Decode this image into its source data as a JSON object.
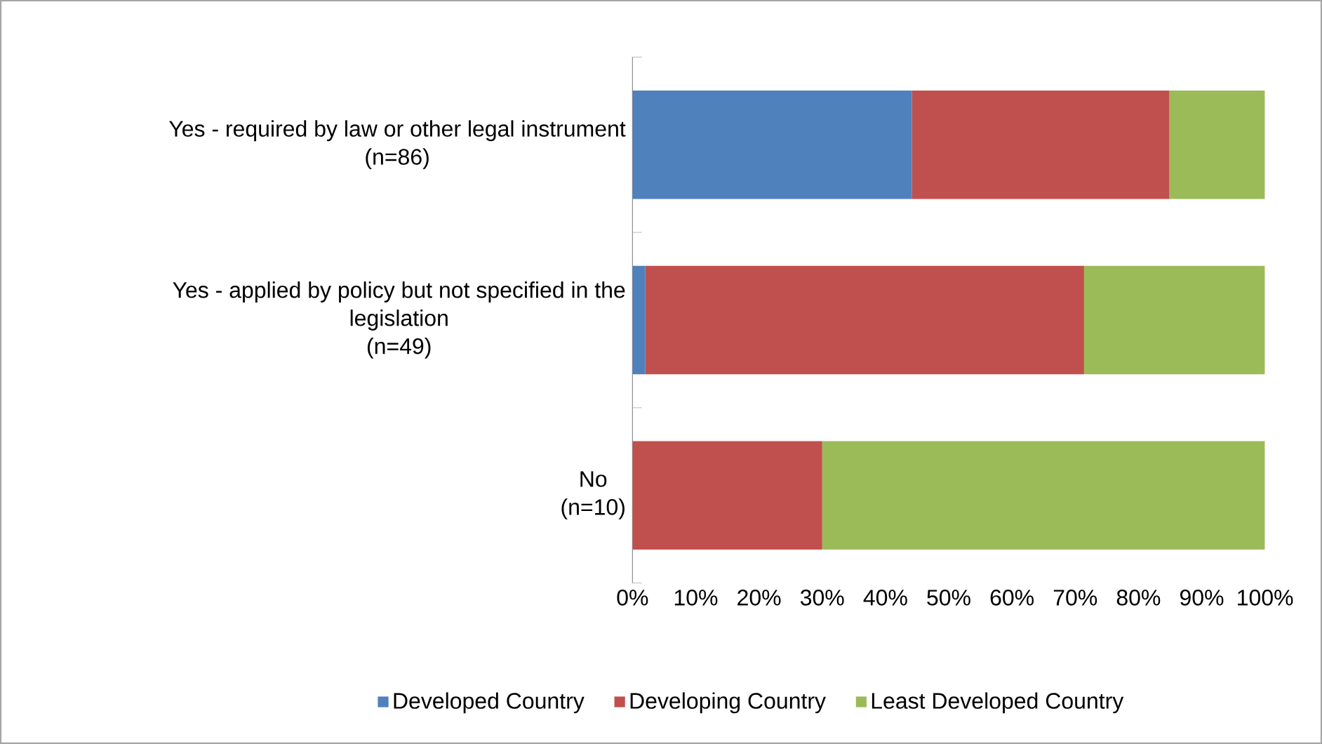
{
  "chart_data": {
    "type": "bar",
    "orientation": "horizontal",
    "stacked": true,
    "categories": [
      "Yes - required by law or other legal instrument\n(n=86)",
      "Yes - applied by policy but not specified in the\nlegislation\n(n=49)",
      "No\n(n=10)"
    ],
    "series": [
      {
        "name": "Developed Country",
        "color": "#4f81bd",
        "values": [
          44.2,
          2.0,
          0
        ]
      },
      {
        "name": "Developing Country",
        "color": "#c0504d",
        "values": [
          40.7,
          69.4,
          30
        ]
      },
      {
        "name": "Least Developed Country",
        "color": "#9bbb59",
        "values": [
          15.1,
          28.6,
          70
        ]
      }
    ],
    "xlim": [
      0,
      100
    ],
    "xticks": [
      {
        "value": 0,
        "label": "0%"
      },
      {
        "value": 10,
        "label": "10%"
      },
      {
        "value": 20,
        "label": "20%"
      },
      {
        "value": 30,
        "label": "30%"
      },
      {
        "value": 40,
        "label": "40%"
      },
      {
        "value": 50,
        "label": "50%"
      },
      {
        "value": 60,
        "label": "60%"
      },
      {
        "value": 70,
        "label": "70%"
      },
      {
        "value": 80,
        "label": "80%"
      },
      {
        "value": 90,
        "label": "90%"
      },
      {
        "value": 100,
        "label": "100%"
      }
    ],
    "grid": false,
    "legend": "bottom"
  }
}
